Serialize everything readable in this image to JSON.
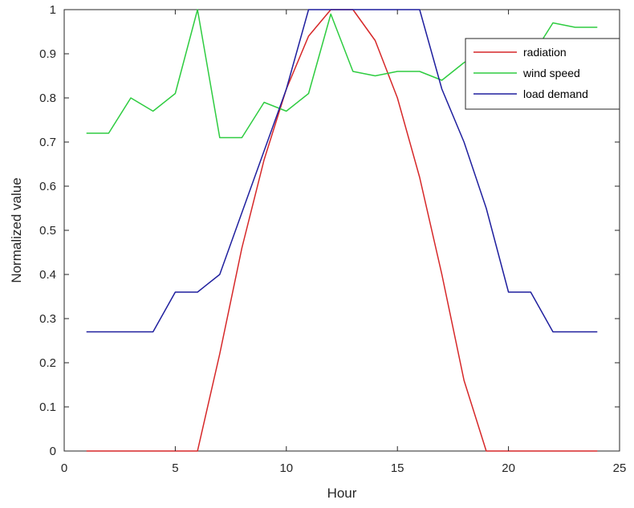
{
  "chart_data": {
    "type": "line",
    "title": "",
    "xlabel": "Hour",
    "ylabel": "Normalized value",
    "xlim": [
      0,
      25
    ],
    "ylim": [
      0,
      1
    ],
    "xticks": [
      0,
      5,
      10,
      15,
      20,
      25
    ],
    "yticks": [
      0,
      0.1,
      0.2,
      0.3,
      0.4,
      0.5,
      0.6,
      0.7,
      0.8,
      0.9,
      1
    ],
    "xtick_labels": [
      "0",
      "5",
      "10",
      "15",
      "20",
      "25"
    ],
    "ytick_labels": [
      "0",
      "0.1",
      "0.2",
      "0.3",
      "0.4",
      "0.5",
      "0.6",
      "0.7",
      "0.8",
      "0.9",
      "1"
    ],
    "grid": false,
    "legend_position": "top-right",
    "x": [
      1,
      2,
      3,
      4,
      5,
      6,
      7,
      8,
      9,
      10,
      11,
      12,
      13,
      14,
      15,
      16,
      17,
      18,
      19,
      20,
      21,
      22,
      23,
      24
    ],
    "series": [
      {
        "name": "radiation",
        "color": "#d62728",
        "values": [
          0,
          0,
          0,
          0,
          0,
          0,
          0.22,
          0.46,
          0.66,
          0.82,
          0.94,
          1.0,
          1.0,
          0.93,
          0.8,
          0.62,
          0.4,
          0.16,
          0,
          0,
          0,
          0,
          0,
          0
        ]
      },
      {
        "name": "wind speed",
        "color": "#2ecc40",
        "values": [
          0.72,
          0.72,
          0.8,
          0.77,
          0.81,
          1.0,
          0.71,
          0.71,
          0.79,
          0.77,
          0.81,
          0.99,
          0.86,
          0.85,
          0.86,
          0.86,
          0.84,
          0.88,
          0.91,
          0.88,
          0.89,
          0.97,
          0.96,
          0.96
        ]
      },
      {
        "name": "load demand",
        "color": "#1f1f9e",
        "values": [
          0.27,
          0.27,
          0.27,
          0.27,
          0.36,
          0.36,
          0.4,
          0.54,
          0.68,
          0.82,
          1.0,
          1.0,
          1.0,
          1.0,
          1.0,
          1.0,
          0.82,
          0.7,
          0.55,
          0.36,
          0.36,
          0.27,
          0.27,
          0.27
        ]
      }
    ]
  }
}
